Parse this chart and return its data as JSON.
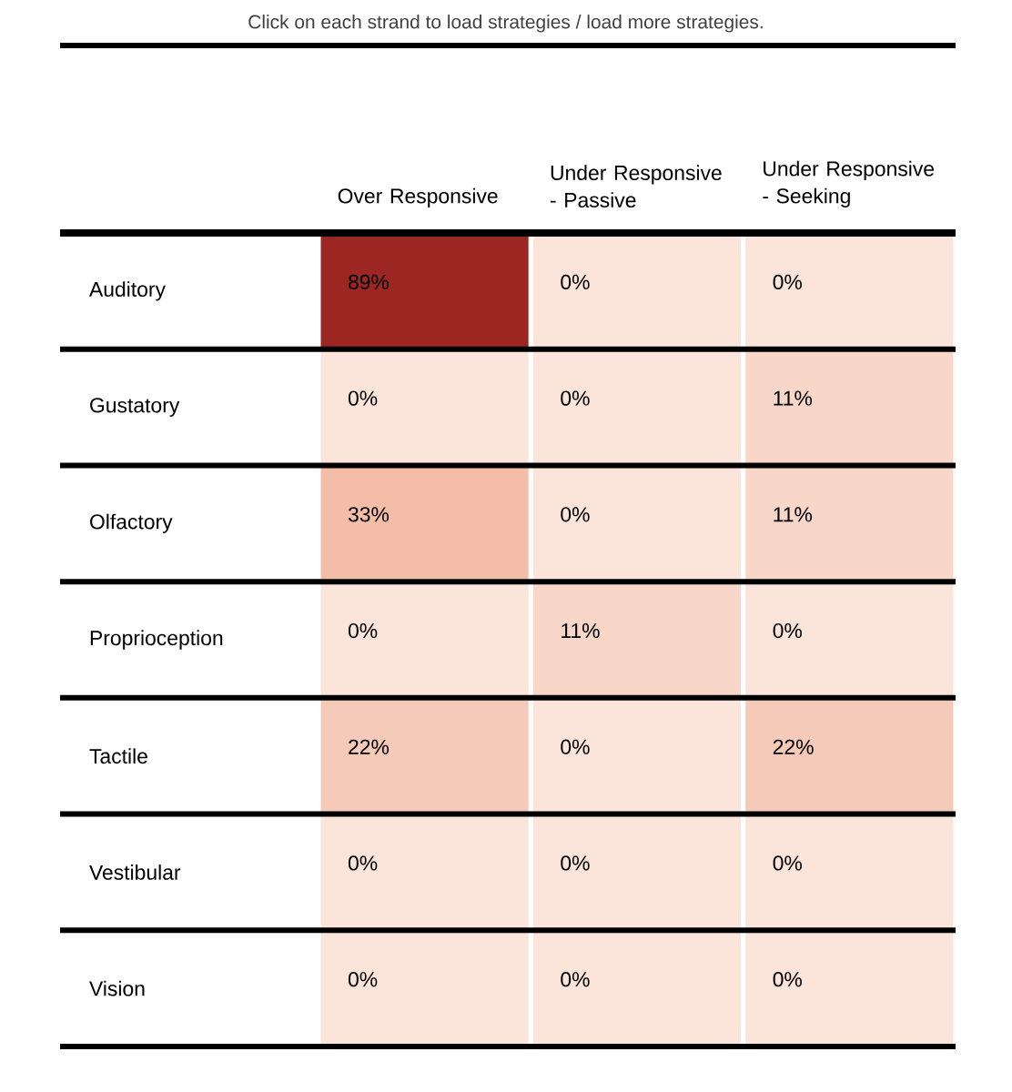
{
  "chart_data": {
    "type": "heatmap",
    "subtitle": "Click on each strand to load strategies / load more strategies.",
    "categories": [
      "Over Responsive",
      "Under Responsive - Passive",
      "Under Responsive - Seeking"
    ],
    "y_categories": [
      "Auditory",
      "Gustatory",
      "Olfactory",
      "Proprioception",
      "Tactile",
      "Vestibular",
      "Vision"
    ],
    "cells": [
      [
        89,
        0,
        0
      ],
      [
        0,
        0,
        11
      ],
      [
        33,
        0,
        11
      ],
      [
        0,
        11,
        0
      ],
      [
        22,
        0,
        22
      ],
      [
        0,
        0,
        0
      ],
      [
        0,
        0,
        0
      ]
    ],
    "cell_labels": [
      [
        "89%",
        "0%",
        "0%"
      ],
      [
        "0%",
        "0%",
        "11%"
      ],
      [
        "33%",
        "0%",
        "11%"
      ],
      [
        "0%",
        "11%",
        "0%"
      ],
      [
        "22%",
        "0%",
        "22%"
      ],
      [
        "0%",
        "0%",
        "0%"
      ],
      [
        "0%",
        "0%",
        "0%"
      ]
    ]
  }
}
